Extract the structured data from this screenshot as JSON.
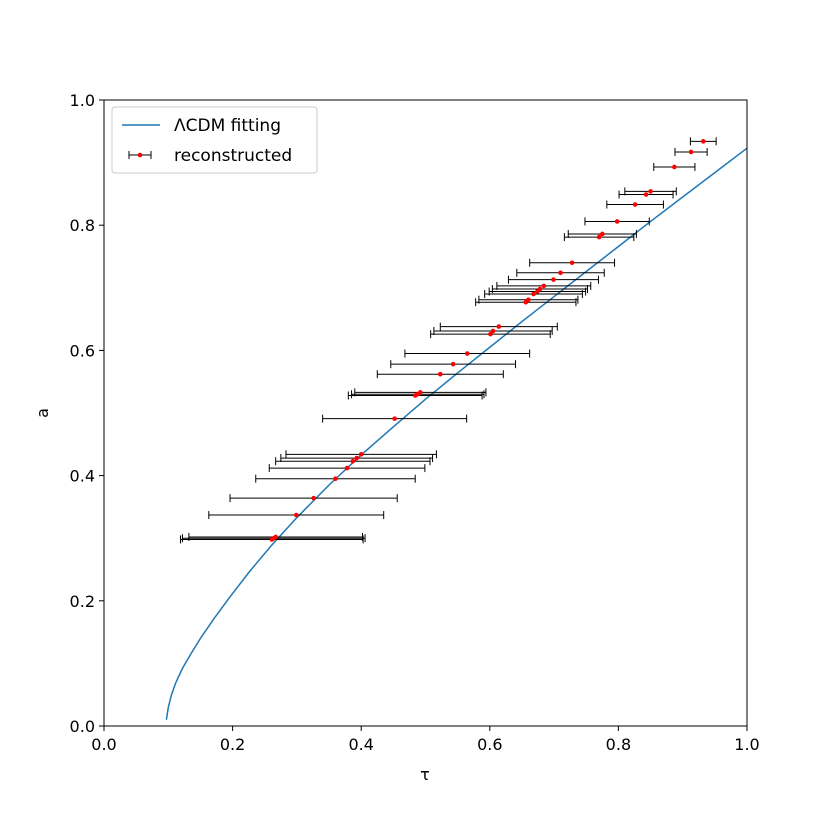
{
  "chart_data": {
    "type": "scatter",
    "xlabel": "τ",
    "ylabel": "a",
    "xlim": [
      0.0,
      1.0
    ],
    "ylim": [
      0.0,
      1.0
    ],
    "xticks": [
      "0.0",
      "0.2",
      "0.4",
      "0.6",
      "0.8",
      "1.0"
    ],
    "yticks": [
      "0.0",
      "0.2",
      "0.4",
      "0.6",
      "0.8",
      "1.0"
    ],
    "grid": false,
    "legend_position": "top-left",
    "legend": [
      {
        "label": "ΛCDM fitting",
        "kind": "line",
        "color": "#1f77b4"
      },
      {
        "label": "reconstructed",
        "kind": "errorbar",
        "color": "#ff0000"
      }
    ],
    "fit_line": {
      "name": "ΛCDM fitting",
      "color": "#1f77b4",
      "x": [
        0.097,
        0.1,
        0.105,
        0.112,
        0.122,
        0.135,
        0.15,
        0.17,
        0.195,
        0.225,
        0.26,
        0.3,
        0.35,
        0.4,
        0.45,
        0.5,
        0.55,
        0.6,
        0.65,
        0.7,
        0.75,
        0.8,
        0.85,
        0.9,
        0.95,
        1.0
      ],
      "y": [
        0.01,
        0.03,
        0.05,
        0.07,
        0.092,
        0.115,
        0.14,
        0.17,
        0.205,
        0.245,
        0.288,
        0.333,
        0.385,
        0.433,
        0.478,
        0.522,
        0.564,
        0.605,
        0.646,
        0.686,
        0.726,
        0.766,
        0.806,
        0.845,
        0.884,
        0.923
      ]
    },
    "series": [
      {
        "name": "reconstructed",
        "color": "#ff0000",
        "ecolor": "#000000",
        "points": [
          {
            "x": 0.261,
            "y": 0.298,
            "xerr": 0.142
          },
          {
            "x": 0.264,
            "y": 0.3,
            "xerr": 0.142
          },
          {
            "x": 0.267,
            "y": 0.302,
            "xerr": 0.135
          },
          {
            "x": 0.299,
            "y": 0.337,
            "xerr": 0.136
          },
          {
            "x": 0.326,
            "y": 0.364,
            "xerr": 0.13
          },
          {
            "x": 0.36,
            "y": 0.395,
            "xerr": 0.124
          },
          {
            "x": 0.378,
            "y": 0.412,
            "xerr": 0.121
          },
          {
            "x": 0.387,
            "y": 0.423,
            "xerr": 0.12
          },
          {
            "x": 0.393,
            "y": 0.428,
            "xerr": 0.118
          },
          {
            "x": 0.4,
            "y": 0.434,
            "xerr": 0.117
          },
          {
            "x": 0.452,
            "y": 0.491,
            "xerr": 0.112
          },
          {
            "x": 0.484,
            "y": 0.528,
            "xerr": 0.104
          },
          {
            "x": 0.488,
            "y": 0.53,
            "xerr": 0.103
          },
          {
            "x": 0.492,
            "y": 0.533,
            "xerr": 0.102
          },
          {
            "x": 0.523,
            "y": 0.562,
            "xerr": 0.098
          },
          {
            "x": 0.543,
            "y": 0.578,
            "xerr": 0.097
          },
          {
            "x": 0.565,
            "y": 0.595,
            "xerr": 0.097
          },
          {
            "x": 0.601,
            "y": 0.626,
            "xerr": 0.093
          },
          {
            "x": 0.605,
            "y": 0.631,
            "xerr": 0.092
          },
          {
            "x": 0.614,
            "y": 0.638,
            "xerr": 0.091
          },
          {
            "x": 0.656,
            "y": 0.677,
            "xerr": 0.078
          },
          {
            "x": 0.66,
            "y": 0.681,
            "xerr": 0.077
          },
          {
            "x": 0.668,
            "y": 0.69,
            "xerr": 0.076
          },
          {
            "x": 0.674,
            "y": 0.694,
            "xerr": 0.075
          },
          {
            "x": 0.678,
            "y": 0.698,
            "xerr": 0.074
          },
          {
            "x": 0.684,
            "y": 0.703,
            "xerr": 0.073
          },
          {
            "x": 0.699,
            "y": 0.713,
            "xerr": 0.07
          },
          {
            "x": 0.71,
            "y": 0.724,
            "xerr": 0.068
          },
          {
            "x": 0.728,
            "y": 0.74,
            "xerr": 0.066
          },
          {
            "x": 0.77,
            "y": 0.781,
            "xerr": 0.054
          },
          {
            "x": 0.775,
            "y": 0.786,
            "xerr": 0.053
          },
          {
            "x": 0.798,
            "y": 0.806,
            "xerr": 0.05
          },
          {
            "x": 0.826,
            "y": 0.833,
            "xerr": 0.044
          },
          {
            "x": 0.843,
            "y": 0.849,
            "xerr": 0.042
          },
          {
            "x": 0.85,
            "y": 0.854,
            "xerr": 0.04
          },
          {
            "x": 0.887,
            "y": 0.893,
            "xerr": 0.032
          },
          {
            "x": 0.913,
            "y": 0.917,
            "xerr": 0.025
          },
          {
            "x": 0.932,
            "y": 0.934,
            "xerr": 0.02
          }
        ]
      }
    ]
  }
}
